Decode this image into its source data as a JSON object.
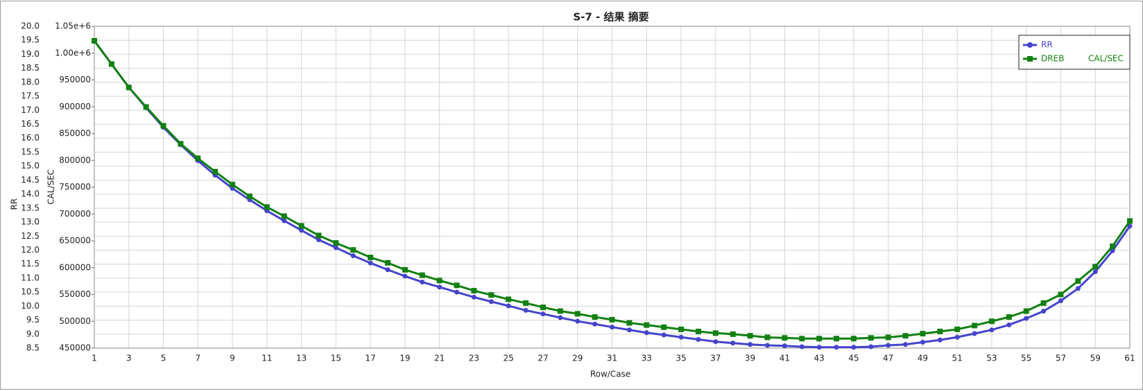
{
  "chart_data": {
    "type": "line",
    "title": "S-7 - 结果 摘要",
    "xlabel": "Row/Case",
    "ylabel": "RR",
    "y2label": "CAL/SEC",
    "x": [
      1,
      2,
      3,
      4,
      5,
      6,
      7,
      8,
      9,
      10,
      11,
      12,
      13,
      14,
      15,
      16,
      17,
      18,
      19,
      20,
      21,
      22,
      23,
      24,
      25,
      26,
      27,
      28,
      29,
      30,
      31,
      32,
      33,
      34,
      35,
      36,
      37,
      38,
      39,
      40,
      41,
      42,
      43,
      44,
      45,
      46,
      47,
      48,
      49,
      50,
      51,
      52,
      53,
      54,
      55,
      56,
      57,
      58,
      59,
      60,
      61
    ],
    "xlim": [
      1,
      61
    ],
    "xticks": [
      1,
      3,
      5,
      7,
      9,
      11,
      13,
      15,
      17,
      19,
      21,
      23,
      25,
      27,
      29,
      31,
      33,
      35,
      37,
      39,
      41,
      43,
      45,
      47,
      49,
      51,
      53,
      55,
      57,
      59,
      61
    ],
    "ylim": [
      8.5,
      20.0
    ],
    "yticks": [
      8.5,
      {
        "value": 9,
        "label": "9.0"
      },
      9.5,
      {
        "value": 10,
        "label": "10.0"
      },
      10.5,
      {
        "value": 11,
        "label": "11.0"
      },
      11.5,
      {
        "value": 12,
        "label": "12.0"
      },
      12.5,
      {
        "value": 13,
        "label": "13.0"
      },
      13.5,
      {
        "value": 14,
        "label": "14.0"
      },
      14.5,
      {
        "value": 15,
        "label": "15.0"
      },
      15.5,
      {
        "value": 16,
        "label": "16.0"
      },
      16.5,
      {
        "value": 17,
        "label": "17.0"
      },
      17.5,
      {
        "value": 18,
        "label": "18.0"
      },
      18.5,
      {
        "value": 19,
        "label": "19.0"
      },
      19.5,
      {
        "value": 20,
        "label": "20.0"
      }
    ],
    "y2lim": [
      450000,
      1050000
    ],
    "y2ticks": [
      450000,
      500000,
      550000,
      600000,
      650000,
      700000,
      750000,
      800000,
      850000,
      900000,
      950000,
      {
        "value": 1000000,
        "label": "1.00e+6"
      },
      {
        "value": 1050000,
        "label": "1.05e+6"
      }
    ],
    "grid": true,
    "legend": "upper right",
    "series": [
      {
        "name": "RR",
        "color": "#4444cc",
        "marker": "circle",
        "values": [
          19.48,
          18.65,
          17.82,
          17.09,
          16.39,
          15.77,
          15.2,
          14.68,
          14.21,
          13.8,
          13.41,
          13.05,
          12.71,
          12.37,
          12.09,
          11.8,
          11.54,
          11.3,
          11.07,
          10.86,
          10.68,
          10.5,
          10.32,
          10.16,
          10.01,
          9.85,
          9.72,
          9.59,
          9.46,
          9.36,
          9.25,
          9.15,
          9.05,
          8.97,
          8.89,
          8.81,
          8.73,
          8.68,
          8.63,
          8.6,
          8.58,
          8.55,
          8.53,
          8.53,
          8.53,
          8.55,
          8.6,
          8.63,
          8.71,
          8.79,
          8.89,
          9.02,
          9.15,
          9.33,
          9.56,
          9.82,
          10.19,
          10.63,
          11.23,
          11.98,
          12.86
        ]
      },
      {
        "name": "DREB",
        "color": "#128012",
        "marker": "square",
        "axis": "y2",
        "values": [
          1023000,
          979600,
          936000,
          899700,
          864500,
          831000,
          804000,
          779000,
          755000,
          733000,
          713000,
          696000,
          678000,
          660000,
          646000,
          633000,
          619000,
          609000,
          596000,
          586000,
          576000,
          567000,
          557000,
          549000,
          541000,
          534000,
          526000,
          519000,
          514000,
          508000,
          503000,
          497000,
          493000,
          489000,
          485000,
          481000,
          478000,
          476000,
          473000,
          470000,
          469000,
          467700,
          467700,
          467700,
          467700,
          469000,
          470000,
          473000,
          477000,
          481000,
          485000,
          492000,
          500000,
          508000,
          519000,
          534000,
          550000,
          575000,
          602000,
          640000,
          687000
        ]
      }
    ]
  }
}
